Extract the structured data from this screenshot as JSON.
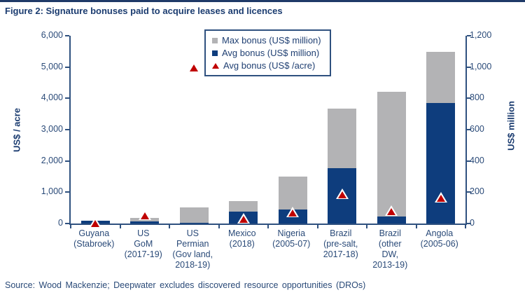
{
  "page": {
    "title": "Figure 2: Signature bonuses paid to acquire leases and licences",
    "source": "Source: Wood Mackenzie; Deepwater excludes discovered resource opportunities (DROs)"
  },
  "colors": {
    "navy_text": "#1b3c70",
    "bar_gray": "#b3b3b5",
    "bar_blue": "#0e3d7d",
    "marker_red": "#c00000",
    "axis_line": "#2f517f"
  },
  "legend": {
    "items": [
      {
        "label": "Max bonus (US$ million)",
        "marker": "square",
        "color": "#b3b3b5"
      },
      {
        "label": "Avg bonus (US$ million)",
        "marker": "square",
        "color": "#0e3d7d"
      },
      {
        "label": "Avg bonus (US$ /acre)",
        "marker": "triangle",
        "color": "#c00000"
      }
    ]
  },
  "chart_data": {
    "type": "bar",
    "title": "Figure 2: Signature bonuses paid to acquire leases and licences",
    "grid": false,
    "legend_position": "top-center",
    "categories": [
      [
        "Guyana",
        "(Stabroek)"
      ],
      [
        "US",
        "GoM",
        "(2017-19)"
      ],
      [
        "US",
        "Permian",
        "(Gov land,",
        "2018-19)"
      ],
      [
        "Mexico",
        "(2018)"
      ],
      [
        "Nigeria",
        "(2005-07)"
      ],
      [
        "Brazil",
        "(pre-salt,",
        "2017-18)"
      ],
      [
        "Brazil",
        "(other",
        "DW,",
        "2013-19)"
      ],
      [
        "Angola",
        "(2005-06)"
      ]
    ],
    "series": [
      {
        "name": "Max bonus (US$ million)",
        "type": "bar",
        "axis": "right",
        "color": "#b3b3b5",
        "values": [
          20,
          35,
          105,
          145,
          300,
          735,
          840,
          1095
        ]
      },
      {
        "name": "Avg bonus (US$ million)",
        "type": "bar",
        "axis": "right",
        "color": "#0e3d7d",
        "values": [
          20,
          12,
          3,
          75,
          90,
          355,
          45,
          770
        ]
      },
      {
        "name": "Avg bonus (US$ /acre)",
        "type": "triangle-marker",
        "axis": "left",
        "color": "#c00000",
        "values": [
          30,
          280,
          5000,
          150,
          350,
          950,
          400,
          830
        ]
      }
    ],
    "left_axis": {
      "label": "US$ / acre",
      "min": 0,
      "max": 6000,
      "step": 1000
    },
    "right_axis": {
      "label": "US$ million",
      "min": 0,
      "max": 1200,
      "step": 200
    }
  }
}
